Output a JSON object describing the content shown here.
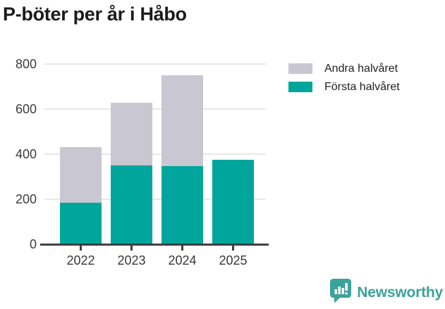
{
  "title": "P-böter per år i Håbo",
  "legend": [
    {
      "label": "Andra halvåret",
      "color": "#c9c7d1"
    },
    {
      "label": "Första halvåret",
      "color": "#00a69b"
    }
  ],
  "chart_data": {
    "type": "bar",
    "stacked": true,
    "title": "P-böter per år i Håbo",
    "categories": [
      "2022",
      "2023",
      "2024",
      "2025"
    ],
    "series": [
      {
        "name": "Första halvåret",
        "color": "#00a69b",
        "values": [
          183,
          351,
          348,
          374
        ]
      },
      {
        "name": "Andra halvåret",
        "color": "#c9c7d1",
        "values": [
          247,
          276,
          401,
          0
        ]
      }
    ],
    "totals": [
      430,
      627,
      749,
      374
    ],
    "xlabel": "",
    "ylabel": "",
    "ylim": [
      0,
      800
    ],
    "yticks": [
      0,
      200,
      400,
      600,
      800
    ],
    "grid": true,
    "legend_position": "top-right"
  },
  "branding": {
    "logo_text": "Newsworthy",
    "logo_color": "#3ba39a"
  },
  "colors": {
    "axis": "#404040",
    "gridline": "#e8e8ea",
    "title_text": "#1b1b1b"
  }
}
